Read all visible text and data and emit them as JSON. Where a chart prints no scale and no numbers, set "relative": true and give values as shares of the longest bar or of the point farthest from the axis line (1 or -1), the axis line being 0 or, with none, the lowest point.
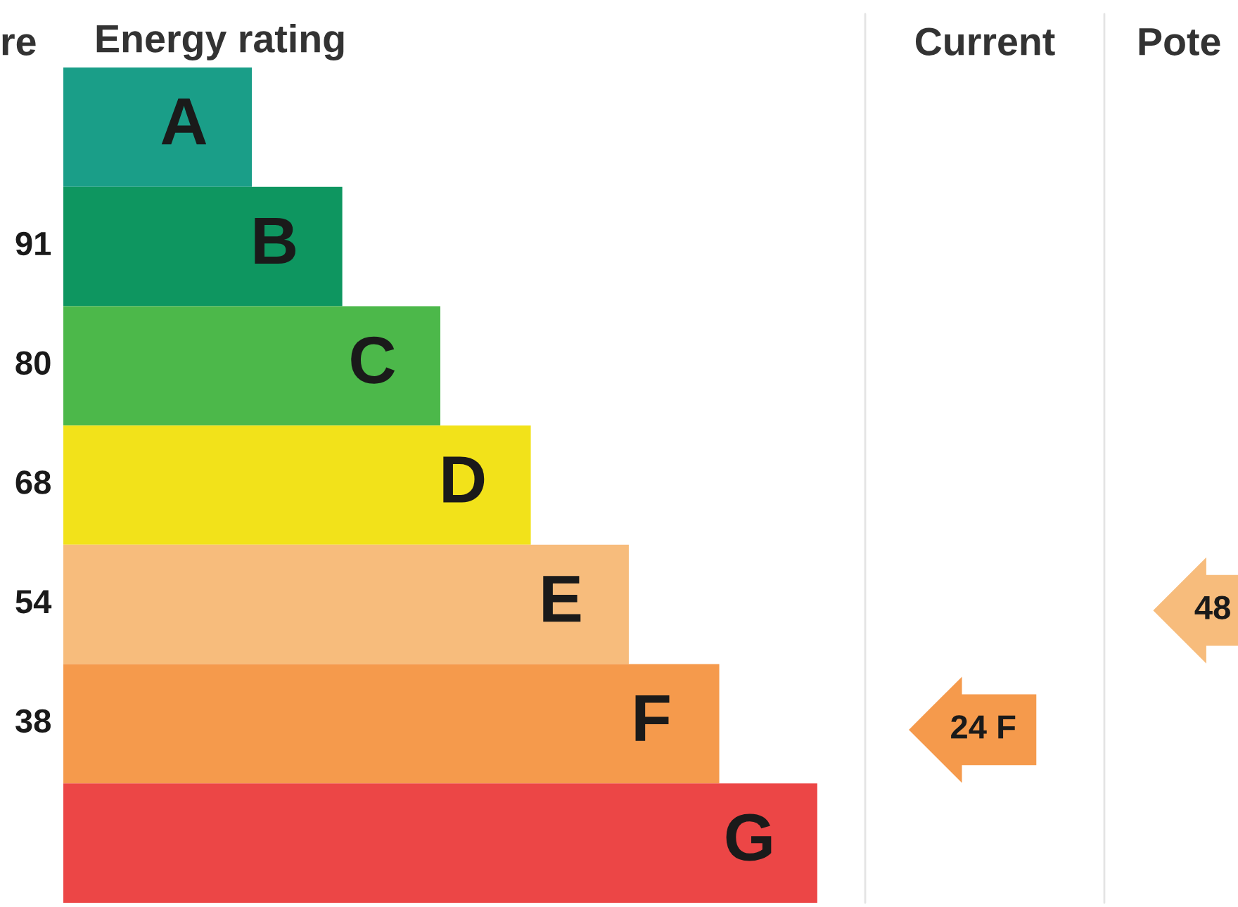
{
  "chart_data": {
    "type": "bar",
    "orientation": "horizontal",
    "relative": true,
    "title": "Energy rating",
    "categories": [
      "A",
      "B",
      "C",
      "D",
      "E",
      "F",
      "G"
    ],
    "values": [
      0.25,
      0.37,
      0.5,
      0.62,
      0.75,
      0.87,
      1
    ],
    "colors": [
      "#1a9e88",
      "#0e9660",
      "#4cb84a",
      "#f2e21a",
      "#f7bc7c",
      "#f59a4c",
      "#ec4646"
    ],
    "annotations": [
      "re",
      "Current",
      "Pote",
      "91",
      "80",
      "68",
      "54",
      "38",
      "24 F",
      "48"
    ]
  }
}
